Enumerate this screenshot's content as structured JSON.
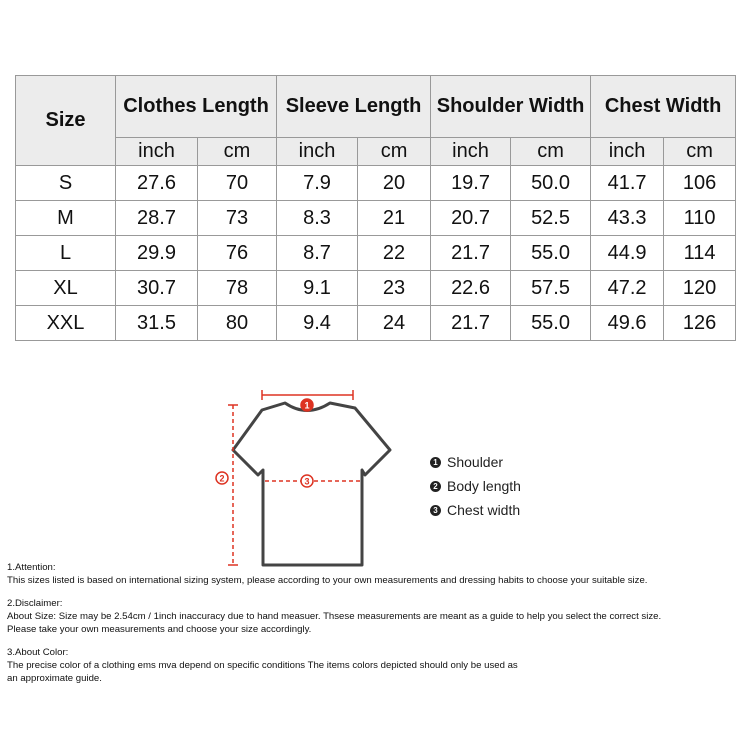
{
  "table": {
    "size_header": "Size",
    "groups": [
      "Clothes Length",
      "Sleeve Length",
      "Shoulder Width",
      "Chest Width"
    ],
    "units": [
      "inch",
      "cm",
      "inch",
      "cm",
      "inch",
      "cm",
      "inch",
      "cm"
    ],
    "rows": [
      [
        "S",
        "27.6",
        "70",
        "7.9",
        "20",
        "19.7",
        "50.0",
        "41.7",
        "106"
      ],
      [
        "M",
        "28.7",
        "73",
        "8.3",
        "21",
        "20.7",
        "52.5",
        "43.3",
        "110"
      ],
      [
        "L",
        "29.9",
        "76",
        "8.7",
        "22",
        "21.7",
        "55.0",
        "44.9",
        "114"
      ],
      [
        "XL",
        "30.7",
        "78",
        "9.1",
        "23",
        "22.6",
        "57.5",
        "47.2",
        "120"
      ],
      [
        "XXL",
        "31.5",
        "80",
        "9.4",
        "24",
        "21.7",
        "55.0",
        "49.6",
        "126"
      ]
    ]
  },
  "diagram": {
    "markers": [
      "1",
      "2",
      "3"
    ],
    "legend": [
      "Shoulder",
      "Body length",
      "Chest width"
    ]
  },
  "notes": [
    {
      "heading": "1.Attention:",
      "lines": [
        "This sizes listed is based on international sizing system, please according to your own measurements and dressing habits to choose your suitable size."
      ]
    },
    {
      "heading": "2.Disclaimer:",
      "lines": [
        "About Size: Size may be 2.54cm / 1inch inaccuracy due to hand measuer. Thsese measurements are meant as a guide to help you select the correct size.",
        "Please take your own measurements and choose your size accordingly."
      ]
    },
    {
      "heading": "3.About Color:",
      "lines": [
        "The precise color of a clothing ems mva depend on specific conditions The items colors depicted should only be used as",
        "an approximate guide."
      ]
    }
  ]
}
